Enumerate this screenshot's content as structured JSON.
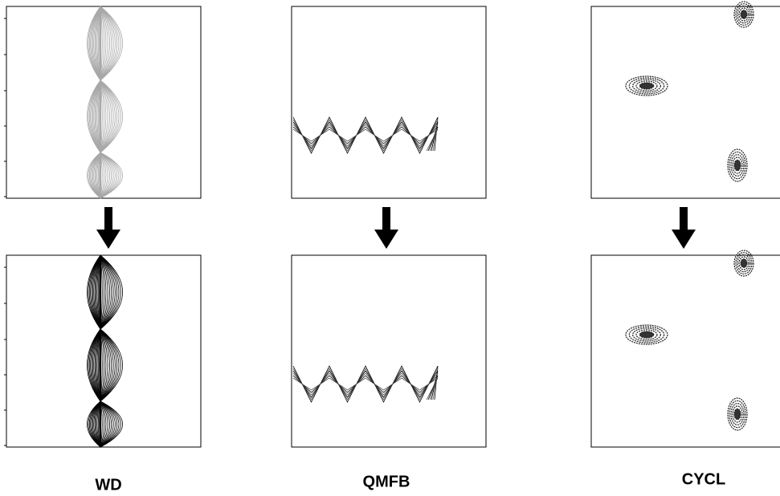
{
  "labels": [
    "WD",
    "QMFB",
    "CYCL"
  ]
}
